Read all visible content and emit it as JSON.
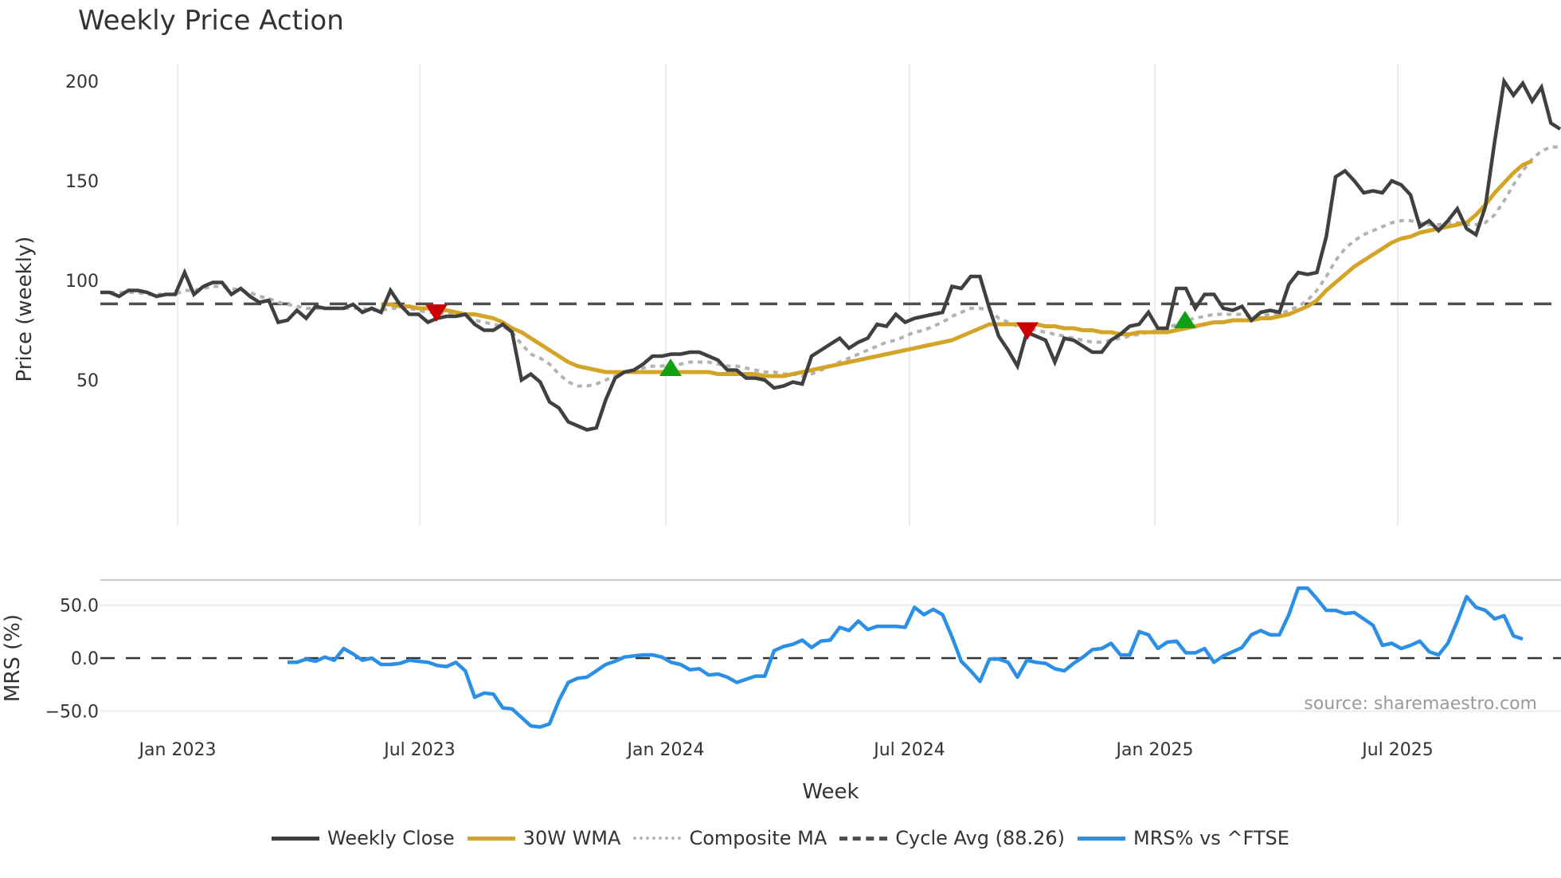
{
  "title": "Weekly Price Action",
  "source": "source: sharemaestro.com",
  "x_axis_label": "Week",
  "legend": [
    {
      "label": "Weekly Close",
      "color": "#404040",
      "style": "solid"
    },
    {
      "label": "30W WMA",
      "color": "#d4a427",
      "style": "solid"
    },
    {
      "label": "Composite MA",
      "color": "#b3b3b3",
      "style": "dotted"
    },
    {
      "label": "Cycle Avg (88.26)",
      "color": "#505050",
      "style": "dashed"
    },
    {
      "label": "MRS% vs ^FTSE",
      "color": "#2b8fe6",
      "style": "solid"
    }
  ],
  "chart_data": [
    {
      "type": "line",
      "title": "Weekly Price Action",
      "xlabel": "Week",
      "ylabel": "Price (weekly)",
      "ylim": [
        16,
        206
      ],
      "yticks": [
        50,
        100,
        150,
        200
      ],
      "xticks": [
        "Jan 2023",
        "Jul 2023",
        "Jan 2024",
        "Jul 2024",
        "Jan 2025",
        "Jul 2025"
      ],
      "grid": "vertical",
      "legend_position": "bottom",
      "x_start": "Nov 2022",
      "x_end": "Nov 2025",
      "cycle_avg": 88.26,
      "series": [
        {
          "name": "Weekly Close",
          "values": [
            94,
            94,
            92,
            95,
            95,
            94,
            92,
            93,
            93,
            104,
            93,
            97,
            99,
            99,
            93,
            96,
            92,
            89,
            90,
            79,
            80,
            85,
            81,
            87,
            86,
            86,
            86,
            88,
            84,
            86,
            84,
            95,
            88,
            83,
            83,
            79,
            81,
            82,
            82,
            83,
            78,
            75,
            75,
            78,
            74,
            50,
            53,
            49,
            39,
            36,
            29,
            27,
            25,
            26,
            40,
            51,
            54,
            55,
            58,
            62,
            62,
            63,
            63,
            64,
            64,
            62,
            60,
            55,
            55,
            51,
            51,
            50,
            46,
            47,
            49,
            48,
            62,
            65,
            68,
            71,
            66,
            69,
            71,
            78,
            77,
            83,
            79,
            81,
            82,
            83,
            84,
            97,
            96,
            102,
            102,
            86,
            72,
            65,
            57,
            74,
            72,
            70,
            59,
            71,
            70,
            67,
            64,
            64,
            70,
            73,
            77,
            78,
            84,
            76,
            76,
            96,
            96,
            86,
            93,
            93,
            86,
            85,
            87,
            80,
            84,
            85,
            84,
            98,
            104,
            103,
            104,
            122,
            152,
            155,
            150,
            144,
            145,
            144,
            150,
            148,
            143,
            127,
            130,
            125,
            130,
            136,
            126,
            123,
            137,
            170,
            200,
            193,
            199,
            190,
            197,
            179,
            176
          ]
        },
        {
          "name": "30W WMA",
          "start_index": 30,
          "values": [
            88,
            88,
            87,
            87,
            86,
            86,
            85,
            85,
            84,
            83,
            83,
            82,
            81,
            79,
            76,
            74,
            71,
            68,
            65,
            62,
            59,
            57,
            56,
            55,
            54,
            54,
            54,
            54,
            54,
            54,
            54,
            54,
            54,
            54,
            54,
            54,
            53,
            53,
            53,
            53,
            53,
            52,
            52,
            52,
            53,
            54,
            55,
            56,
            57,
            58,
            59,
            60,
            61,
            62,
            63,
            64,
            65,
            66,
            67,
            68,
            69,
            70,
            72,
            74,
            76,
            78,
            78,
            78,
            78,
            78,
            78,
            77,
            77,
            76,
            76,
            75,
            75,
            74,
            74,
            73,
            73,
            74,
            74,
            74,
            74,
            75,
            76,
            77,
            78,
            79,
            79,
            80,
            80,
            80,
            81,
            81,
            82,
            83,
            85,
            87,
            90,
            95,
            99,
            103,
            107,
            110,
            113,
            116,
            119,
            121,
            122,
            124,
            125,
            126,
            127,
            128,
            129,
            133,
            138,
            144,
            149,
            154,
            158,
            160
          ]
        },
        {
          "name": "Composite MA",
          "values": [
            94,
            94,
            94,
            94,
            94,
            93,
            93,
            93,
            93,
            95,
            95,
            96,
            97,
            97,
            96,
            95,
            94,
            92,
            91,
            89,
            88,
            87,
            86,
            86,
            86,
            86,
            86,
            86,
            86,
            85,
            85,
            86,
            86,
            86,
            85,
            84,
            84,
            83,
            83,
            82,
            80,
            79,
            78,
            77,
            74,
            68,
            63,
            61,
            58,
            53,
            49,
            47,
            47,
            48,
            50,
            52,
            54,
            55,
            56,
            57,
            57,
            58,
            58,
            59,
            59,
            59,
            58,
            57,
            57,
            56,
            55,
            54,
            54,
            53,
            53,
            52,
            53,
            55,
            57,
            59,
            61,
            63,
            65,
            67,
            69,
            70,
            72,
            74,
            75,
            77,
            79,
            82,
            84,
            86,
            86,
            85,
            81,
            79,
            77,
            76,
            75,
            74,
            73,
            72,
            71,
            70,
            69,
            69,
            70,
            71,
            72,
            73,
            74,
            75,
            76,
            78,
            80,
            81,
            82,
            83,
            83,
            83,
            83,
            82,
            82,
            83,
            83,
            85,
            87,
            90,
            95,
            102,
            110,
            116,
            120,
            123,
            125,
            127,
            129,
            130,
            130,
            129,
            128,
            128,
            129,
            129,
            128,
            128,
            129,
            133,
            140,
            148,
            155,
            161,
            165,
            167,
            167
          ]
        },
        {
          "name": "Cycle Avg (88.26)",
          "values": [
            88.26
          ]
        }
      ],
      "markers": [
        {
          "type": "sell",
          "shape": "triangle-down",
          "color": "#cc0000",
          "x_label": "Jul 2023",
          "price": 84
        },
        {
          "type": "buy",
          "shape": "triangle-up",
          "color": "#11a011",
          "x_label": "Jan 2024",
          "price": 56
        },
        {
          "type": "sell",
          "shape": "triangle-down",
          "color": "#cc0000",
          "x_label": "Oct 2024",
          "price": 75
        },
        {
          "type": "buy",
          "shape": "triangle-up",
          "color": "#11a011",
          "x_label": "Jan 2025",
          "price": 80
        }
      ]
    },
    {
      "type": "line",
      "title": "",
      "xlabel": "Week",
      "ylabel": "MRS (%)",
      "ylim": [
        -70,
        72
      ],
      "yticks": [
        "-50.0",
        "0.0",
        "50.0"
      ],
      "xticks": [
        "Jan 2023",
        "Jul 2023",
        "Jan 2024",
        "Jul 2024",
        "Jan 2025",
        "Jul 2025"
      ],
      "zero_line": "dashed",
      "series": [
        {
          "name": "MRS% vs ^FTSE",
          "start_index": 20,
          "values": [
            -4,
            -4,
            -1,
            -3,
            1,
            -2,
            9,
            4,
            -2,
            0,
            -6,
            -6,
            -5,
            -2,
            -3,
            -4,
            -7,
            -8,
            -4,
            -12,
            -37,
            -33,
            -34,
            -47,
            -48,
            -56,
            -64,
            -65,
            -62,
            -40,
            -23,
            -19,
            -18,
            -12,
            -6,
            -3,
            1,
            2,
            3,
            3,
            1,
            -4,
            -6,
            -11,
            -10,
            -16,
            -15,
            -18,
            -23,
            -20,
            -17,
            -17,
            7,
            11,
            13,
            17,
            10,
            16,
            17,
            29,
            26,
            35,
            27,
            30,
            30,
            30,
            29,
            48,
            41,
            46,
            41,
            20,
            -3,
            -12,
            -22,
            -1,
            -1,
            -4,
            -18,
            -2,
            -4,
            -5,
            -10,
            -12,
            -5,
            1,
            8,
            9,
            14,
            3,
            3,
            25,
            22,
            9,
            15,
            16,
            5,
            5,
            9,
            -4,
            2,
            6,
            10,
            22,
            26,
            22,
            22,
            41,
            66,
            66,
            56,
            45,
            45,
            42,
            43,
            37,
            31,
            12,
            14,
            9,
            12,
            16,
            6,
            3,
            14,
            35,
            58,
            48,
            45,
            37,
            40,
            21,
            18
          ]
        }
      ]
    }
  ]
}
